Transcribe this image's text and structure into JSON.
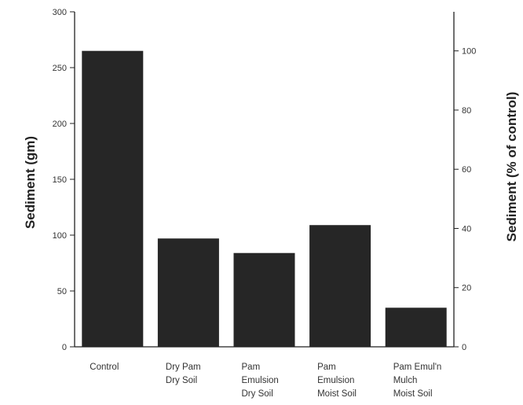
{
  "chart_data": {
    "type": "bar",
    "categories": [
      [
        "Control"
      ],
      [
        "Dry Pam",
        "Dry Soil"
      ],
      [
        "Pam",
        "Emulsion",
        "Dry Soil"
      ],
      [
        "Pam",
        "Emulsion",
        "Moist Soil"
      ],
      [
        "Pam Emul'n",
        "Mulch",
        "Moist Soil"
      ]
    ],
    "series": [
      {
        "values": [
          265,
          97,
          84,
          109,
          35
        ]
      }
    ],
    "ylabel": "Sediment (gm)",
    "ylim": [
      0,
      300
    ],
    "yticks": [
      0,
      50,
      100,
      150,
      200,
      250,
      300
    ],
    "y2label": "Sediment (% of control)",
    "y2ticks": [
      0,
      20,
      40,
      60,
      80,
      100
    ],
    "bar_color": "#262626",
    "grid": false,
    "legend": "none"
  }
}
